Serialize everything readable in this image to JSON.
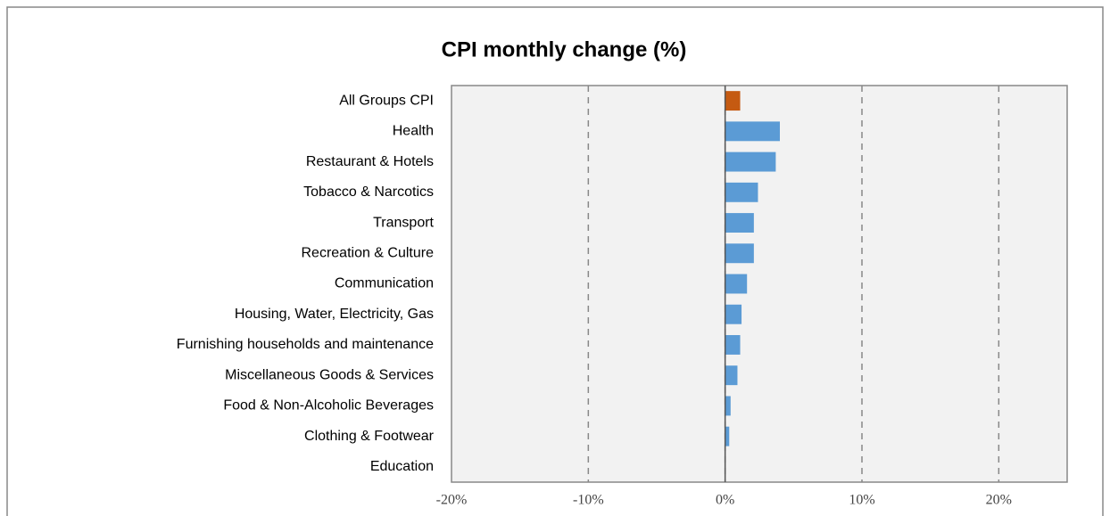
{
  "chart_data": {
    "type": "barh",
    "title": "CPI monthly change (%)",
    "categories": [
      "All Groups CPI",
      "Health",
      "Restaurant & Hotels",
      "Tobacco & Narcotics",
      "Transport",
      "Recreation & Culture",
      "Communication",
      "Housing, Water, Electricity, Gas",
      "Furnishing households and maintenance",
      "Miscellaneous Goods & Services",
      "Food & Non-Alcoholic Beverages",
      "Clothing & Footwear",
      "Education"
    ],
    "values": [
      1.1,
      4.0,
      3.7,
      2.4,
      2.1,
      2.1,
      1.6,
      1.2,
      1.1,
      0.9,
      0.4,
      0.3,
      0
    ],
    "colors": [
      "#c55a11",
      "#5b9bd5",
      "#5b9bd5",
      "#5b9bd5",
      "#5b9bd5",
      "#5b9bd5",
      "#5b9bd5",
      "#5b9bd5",
      "#5b9bd5",
      "#5b9bd5",
      "#5b9bd5",
      "#5b9bd5",
      "#5b9bd5"
    ],
    "xlim": [
      -20,
      25
    ],
    "xticks": [
      {
        "value": -20,
        "label": "-20%"
      },
      {
        "value": -10,
        "label": "-10%"
      },
      {
        "value": 0,
        "label": "0%"
      },
      {
        "value": 10,
        "label": "10%"
      },
      {
        "value": 20,
        "label": "20%"
      }
    ],
    "grid": true
  }
}
